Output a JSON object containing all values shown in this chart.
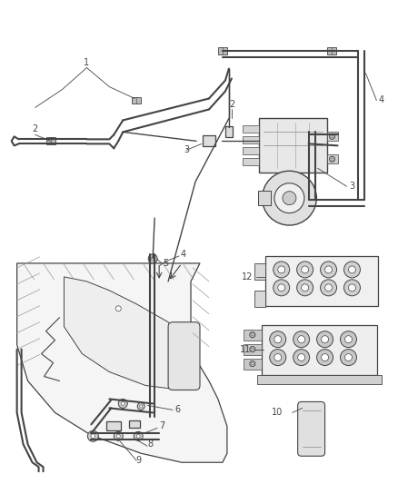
{
  "bg_color": "#ffffff",
  "line_color": "#444444",
  "fig_width": 4.38,
  "fig_height": 5.33,
  "dpi": 100,
  "label_fs": 7.0,
  "clip_color": "#555555",
  "hatch_color": "#999999"
}
